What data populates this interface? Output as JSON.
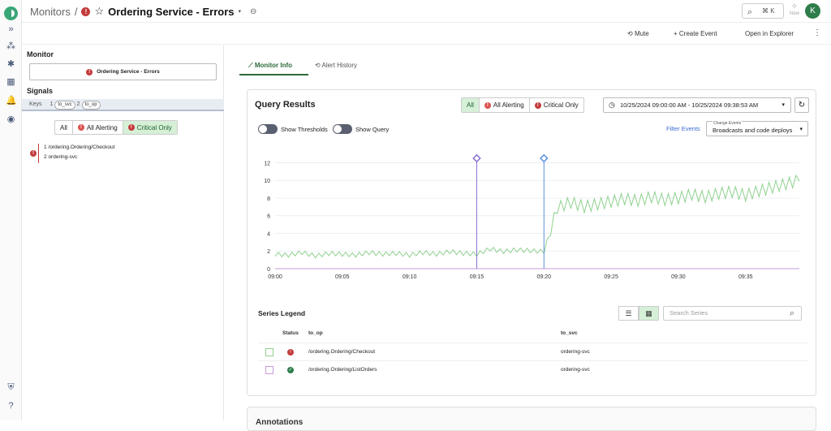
{
  "header": {
    "crumb_root": "Monitors",
    "crumb_sep": "/",
    "monitor_title": "Ordering Service - Errors",
    "search_shortcut": "⌘ K",
    "new_label": "New",
    "avatar_initial": "K"
  },
  "actions": {
    "mute": "Mute",
    "create_event": "Create Event",
    "open_explorer": "Open in Explorer"
  },
  "left": {
    "monitor_heading": "Monitor",
    "monitor_name": "Ordering Service - Errors",
    "signals_heading": "Signals",
    "keys_label": "Keys",
    "keys": [
      {
        "idx": "1",
        "name": "to_svc"
      },
      {
        "idx": "2",
        "name": "to_op"
      }
    ],
    "filter": {
      "all": "All",
      "alerting": "All Alerting",
      "critical": "Critical Only",
      "selected": "Critical Only"
    },
    "signal": {
      "l1_idx": "1",
      "l1": "/ordering.Ordering/Checkout",
      "l2_idx": "2",
      "l2": "ordering-svc"
    }
  },
  "tabs": {
    "monitor_info": "Monitor Info",
    "alert_history": "Alert History",
    "active": "Monitor Info"
  },
  "query": {
    "title": "Query Results",
    "filter": {
      "all": "All",
      "alerting": "All Alerting",
      "critical": "Critical Only",
      "selected": "All"
    },
    "date_range": "10/25/2024 09:00:00 AM - 10/25/2024 09:38:53 AM",
    "show_thresholds": "Show Thresholds",
    "show_query": "Show Query",
    "filter_events": "Filter Events",
    "change_events_label": "Change Events",
    "change_events_value": "Broadcasts and code deploys"
  },
  "chart_data": {
    "type": "line",
    "x_ticks": [
      "09:00",
      "09:05",
      "09:10",
      "09:15",
      "09:20",
      "09:25",
      "09:30",
      "09:35"
    ],
    "x_range_min": [
      0,
      39
    ],
    "y_ticks": [
      0,
      2,
      4,
      6,
      8,
      10,
      12
    ],
    "ylim": [
      0,
      12.5
    ],
    "grid": true,
    "event_markers_min": [
      15,
      20
    ],
    "event_colors": [
      "#8a6fd1",
      "#5b8fe0"
    ],
    "series": [
      {
        "color": "#8fd18f",
        "x": [
          0,
          1,
          2,
          3,
          4,
          5,
          6,
          7,
          8,
          9,
          10,
          11,
          12,
          13,
          14,
          15,
          16,
          17,
          18,
          19,
          20,
          21,
          22,
          23,
          24,
          25,
          26,
          27,
          28,
          29,
          30,
          31,
          32,
          33,
          34,
          35,
          36,
          37,
          38,
          39
        ],
        "values": [
          1.6,
          1.5,
          1.8,
          1.4,
          1.7,
          1.6,
          1.5,
          1.8,
          1.6,
          1.7,
          1.5,
          1.8,
          1.6,
          1.9,
          1.7,
          1.6,
          2.2,
          1.9,
          2.1,
          2.0,
          1.9,
          6.8,
          7.4,
          6.9,
          7.2,
          7.5,
          7.8,
          7.6,
          8.0,
          7.7,
          7.9,
          8.3,
          8.0,
          8.4,
          8.6,
          8.2,
          8.7,
          9.1,
          9.5,
          9.9
        ]
      },
      {
        "color": "#c79bd8",
        "x": [
          0,
          39
        ],
        "values": [
          0,
          0
        ]
      }
    ]
  },
  "legend": {
    "title": "Series Legend",
    "search_placeholder": "Search Series",
    "columns": {
      "status": "Status",
      "to_op": "to_op",
      "to_svc": "to_svc"
    },
    "rows": [
      {
        "to_op": "/ordering.Ordering/Checkout",
        "to_svc": "ordering-svc",
        "status": "critical",
        "color": "#8fd18f"
      },
      {
        "to_op": "/ordering.Ordering/ListOrders",
        "to_svc": "ordering-svc",
        "status": "ok",
        "color": "#c79bd8"
      }
    ]
  },
  "annotations_title": "Annotations"
}
